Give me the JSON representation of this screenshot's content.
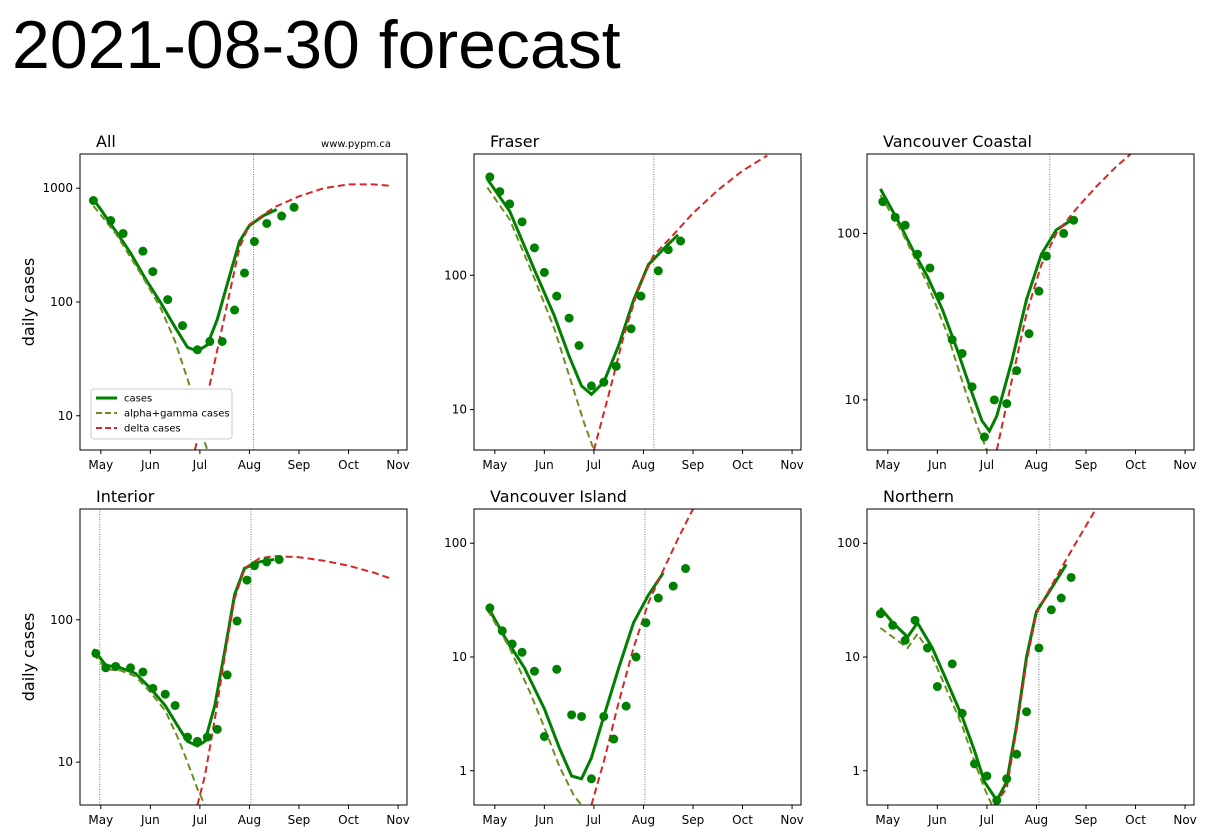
{
  "title": "2021-08-30 forecast",
  "chart_data": [
    {
      "type": "line",
      "title": "All",
      "annotation": "www.pypm.ca",
      "ylabel": "daily cases",
      "legend": "lower left",
      "log_y": true,
      "xlim": [
        4.58,
        11.18
      ],
      "xticks": [
        {
          "value": 5,
          "label": "May"
        },
        {
          "value": 6,
          "label": "Jun"
        },
        {
          "value": 7,
          "label": "Jul"
        },
        {
          "value": 8,
          "label": "Aug"
        },
        {
          "value": 9,
          "label": "Sep"
        },
        {
          "value": 10,
          "label": "Oct"
        },
        {
          "value": 11,
          "label": "Nov"
        }
      ],
      "ylim": [
        5,
        2000
      ],
      "yticks": [
        10,
        100,
        1000
      ],
      "vlines": [
        8.08
      ],
      "series": [
        {
          "name": "cases",
          "color": "#008000",
          "linestyle": "solid",
          "x": [
            4.85,
            5.0,
            5.3,
            5.6,
            5.9,
            6.2,
            6.5,
            6.75,
            6.95,
            7.15,
            7.35,
            7.6,
            7.8,
            8.0,
            8.3,
            8.55
          ],
          "values": [
            800,
            650,
            420,
            270,
            160,
            100,
            60,
            40,
            37,
            42,
            70,
            170,
            340,
            470,
            580,
            650
          ]
        },
        {
          "name": "alpha+gamma cases",
          "color": "#6b8e23",
          "linestyle": "dashed",
          "x": [
            4.85,
            5.3,
            5.8,
            6.2,
            6.5,
            6.8,
            7.0,
            7.15
          ],
          "values": [
            700,
            400,
            180,
            90,
            45,
            18,
            8,
            5
          ]
        },
        {
          "name": "delta cases",
          "color": "#d62728",
          "linestyle": "dashed",
          "x": [
            6.9,
            7.1,
            7.3,
            7.6,
            7.8,
            8.0,
            8.5,
            9.0,
            9.5,
            10.0,
            10.5,
            10.85
          ],
          "values": [
            5,
            12,
            30,
            120,
            300,
            480,
            680,
            850,
            1000,
            1080,
            1080,
            1050
          ]
        }
      ],
      "points": {
        "color": "#008000",
        "x": [
          4.85,
          5.2,
          5.45,
          5.85,
          6.05,
          6.35,
          6.65,
          6.95,
          7.2,
          7.45,
          7.7,
          7.9,
          8.1,
          8.35,
          8.65,
          8.9
        ],
        "values": [
          780,
          520,
          400,
          280,
          185,
          105,
          62,
          38,
          45,
          45,
          85,
          180,
          340,
          490,
          570,
          680
        ]
      }
    },
    {
      "type": "line",
      "title": "Fraser",
      "log_y": true,
      "xlim": [
        4.58,
        11.18
      ],
      "xticks": [
        {
          "value": 5,
          "label": "May"
        },
        {
          "value": 6,
          "label": "Jun"
        },
        {
          "value": 7,
          "label": "Jul"
        },
        {
          "value": 8,
          "label": "Aug"
        },
        {
          "value": 9,
          "label": "Sep"
        },
        {
          "value": 10,
          "label": "Oct"
        },
        {
          "value": 11,
          "label": "Nov"
        }
      ],
      "ylim": [
        5,
        800
      ],
      "yticks": [
        10,
        100
      ],
      "vlines": [
        8.21
      ],
      "series": [
        {
          "name": "cases",
          "color": "#008000",
          "linestyle": "solid",
          "x": [
            4.85,
            5.3,
            5.8,
            6.2,
            6.5,
            6.75,
            6.95,
            7.2,
            7.5,
            7.8,
            8.1,
            8.5,
            8.7
          ],
          "values": [
            520,
            300,
            110,
            50,
            25,
            15,
            13,
            16,
            30,
            65,
            120,
            170,
            200
          ]
        },
        {
          "name": "alpha+gamma cases",
          "color": "#6b8e23",
          "linestyle": "dashed",
          "x": [
            4.85,
            5.3,
            5.8,
            6.2,
            6.5,
            6.8,
            7.0
          ],
          "values": [
            450,
            260,
            95,
            40,
            18,
            8,
            5
          ]
        },
        {
          "name": "delta cases",
          "color": "#d62728",
          "linestyle": "dashed",
          "x": [
            7.0,
            7.3,
            7.6,
            7.9,
            8.2,
            8.6,
            9.0,
            9.5,
            10.0,
            10.5
          ],
          "values": [
            5,
            13,
            35,
            80,
            140,
            200,
            290,
            430,
            600,
            780
          ]
        }
      ],
      "points": {
        "color": "#008000",
        "x": [
          4.9,
          5.1,
          5.3,
          5.55,
          5.8,
          6.0,
          6.25,
          6.5,
          6.7,
          6.95,
          7.2,
          7.45,
          7.75,
          7.95,
          8.3,
          8.5,
          8.75
        ],
        "values": [
          540,
          420,
          340,
          250,
          160,
          105,
          70,
          48,
          30,
          15,
          16,
          21,
          40,
          70,
          108,
          155,
          180
        ]
      }
    },
    {
      "type": "line",
      "title": "Vancouver Coastal",
      "log_y": true,
      "xlim": [
        4.58,
        11.18
      ],
      "xticks": [
        {
          "value": 5,
          "label": "May"
        },
        {
          "value": 6,
          "label": "Jun"
        },
        {
          "value": 7,
          "label": "Jul"
        },
        {
          "value": 8,
          "label": "Aug"
        },
        {
          "value": 9,
          "label": "Sep"
        },
        {
          "value": 10,
          "label": "Oct"
        },
        {
          "value": 11,
          "label": "Nov"
        }
      ],
      "ylim": [
        5,
        300
      ],
      "yticks": [
        10,
        100
      ],
      "vlines": [
        8.27
      ],
      "series": [
        {
          "name": "cases",
          "color": "#008000",
          "linestyle": "solid",
          "x": [
            4.85,
            5.2,
            5.5,
            5.8,
            6.1,
            6.4,
            6.7,
            6.9,
            7.05,
            7.2,
            7.5,
            7.8,
            8.1,
            8.4,
            8.7
          ],
          "values": [
            185,
            120,
            80,
            55,
            35,
            20,
            11,
            7.5,
            6.5,
            8,
            17,
            40,
            75,
            105,
            120
          ]
        },
        {
          "name": "alpha+gamma cases",
          "color": "#6b8e23",
          "linestyle": "dashed",
          "x": [
            4.85,
            5.3,
            5.8,
            6.2,
            6.5,
            6.8,
            7.0
          ],
          "values": [
            170,
            100,
            50,
            25,
            13,
            7,
            5
          ]
        },
        {
          "name": "delta cases",
          "color": "#d62728",
          "linestyle": "dashed",
          "x": [
            7.2,
            7.5,
            7.8,
            8.1,
            8.4,
            8.8,
            9.2,
            9.6,
            9.9
          ],
          "values": [
            5,
            13,
            33,
            65,
            100,
            140,
            190,
            250,
            300
          ]
        }
      ],
      "points": {
        "color": "#008000",
        "x": [
          4.9,
          5.15,
          5.35,
          5.6,
          5.85,
          6.05,
          6.3,
          6.5,
          6.7,
          6.95,
          7.15,
          7.4,
          7.6,
          7.85,
          8.05,
          8.2,
          8.55,
          8.75
        ],
        "values": [
          155,
          125,
          112,
          75,
          62,
          42,
          23,
          19,
          12,
          6,
          10,
          9.5,
          15,
          25,
          45,
          73,
          100,
          120
        ]
      }
    },
    {
      "type": "line",
      "title": "Interior",
      "ylabel": "daily cases",
      "log_y": true,
      "xlim": [
        4.58,
        11.18
      ],
      "xticks": [
        {
          "value": 5,
          "label": "May"
        },
        {
          "value": 6,
          "label": "Jun"
        },
        {
          "value": 7,
          "label": "Jul"
        },
        {
          "value": 8,
          "label": "Aug"
        },
        {
          "value": 9,
          "label": "Sep"
        },
        {
          "value": 10,
          "label": "Oct"
        },
        {
          "value": 11,
          "label": "Nov"
        }
      ],
      "ylim": [
        5,
        600
      ],
      "yticks": [
        10,
        100
      ],
      "vlines": [
        4.98,
        8.03
      ],
      "series": [
        {
          "name": "cases",
          "color": "#008000",
          "linestyle": "solid",
          "x": [
            4.85,
            5.1,
            5.4,
            5.7,
            6.0,
            6.3,
            6.55,
            6.75,
            6.95,
            7.1,
            7.3,
            7.5,
            7.7,
            7.9,
            8.2,
            8.5
          ],
          "values": [
            62,
            48,
            46,
            42,
            33,
            25,
            18,
            14,
            13,
            14,
            25,
            60,
            150,
            230,
            255,
            265
          ]
        },
        {
          "name": "alpha+gamma cases",
          "color": "#6b8e23",
          "linestyle": "dashed",
          "x": [
            4.85,
            5.1,
            5.4,
            5.7,
            6.0,
            6.3,
            6.55,
            6.75,
            6.95,
            7.1
          ],
          "values": [
            58,
            45,
            44,
            40,
            31,
            23,
            15,
            10,
            6.5,
            5
          ]
        },
        {
          "name": "delta cases",
          "color": "#d62728",
          "linestyle": "dashed",
          "x": [
            6.95,
            7.1,
            7.3,
            7.5,
            7.7,
            7.9,
            8.2,
            8.5,
            9.0,
            9.5,
            10.0,
            10.5,
            10.85
          ],
          "values": [
            5,
            8,
            20,
            55,
            140,
            230,
            270,
            280,
            275,
            260,
            240,
            215,
            195
          ]
        }
      ],
      "points": {
        "color": "#008000",
        "x": [
          4.9,
          5.1,
          5.3,
          5.6,
          5.85,
          6.05,
          6.3,
          6.5,
          6.75,
          6.95,
          7.15,
          7.35,
          7.55,
          7.75,
          7.95,
          8.1,
          8.35,
          8.6
        ],
        "values": [
          58,
          46,
          47,
          46,
          43,
          33,
          30,
          25,
          15,
          14,
          15,
          17,
          41,
          98,
          190,
          240,
          255,
          265
        ]
      }
    },
    {
      "type": "line",
      "title": "Vancouver Island",
      "log_y": true,
      "xlim": [
        4.58,
        11.18
      ],
      "xticks": [
        {
          "value": 5,
          "label": "May"
        },
        {
          "value": 6,
          "label": "Jun"
        },
        {
          "value": 7,
          "label": "Jul"
        },
        {
          "value": 8,
          "label": "Aug"
        },
        {
          "value": 9,
          "label": "Sep"
        },
        {
          "value": 10,
          "label": "Oct"
        },
        {
          "value": 11,
          "label": "Nov"
        }
      ],
      "ylim": [
        0.5,
        200
      ],
      "yticks": [
        1,
        10,
        100
      ],
      "vlines": [
        8.03
      ],
      "series": [
        {
          "name": "cases",
          "color": "#008000",
          "linestyle": "solid",
          "x": [
            4.85,
            5.2,
            5.6,
            6.0,
            6.3,
            6.55,
            6.75,
            6.95,
            7.2,
            7.5,
            7.8,
            8.1,
            8.4
          ],
          "values": [
            28,
            15,
            8,
            3.5,
            1.6,
            0.9,
            0.85,
            1.3,
            3,
            8,
            20,
            35,
            55
          ]
        },
        {
          "name": "alpha+gamma cases",
          "color": "#6b8e23",
          "linestyle": "dashed",
          "x": [
            4.85,
            5.3,
            5.7,
            6.0,
            6.3,
            6.6,
            6.75
          ],
          "values": [
            26,
            12,
            5,
            2.4,
            1.1,
            0.6,
            0.5
          ]
        },
        {
          "name": "delta cases",
          "color": "#d62728",
          "linestyle": "dashed",
          "x": [
            6.95,
            7.2,
            7.5,
            7.8,
            8.1,
            8.4,
            8.7,
            9.0
          ],
          "values": [
            0.5,
            1.2,
            4,
            12,
            30,
            58,
            110,
            200
          ]
        }
      ],
      "points": {
        "color": "#008000",
        "x": [
          4.9,
          5.15,
          5.35,
          5.55,
          5.8,
          6.0,
          6.25,
          6.55,
          6.75,
          6.95,
          7.2,
          7.4,
          7.65,
          7.85,
          8.05,
          8.3,
          8.6,
          8.85
        ],
        "values": [
          27,
          17,
          13,
          11,
          7.5,
          2,
          7.8,
          3.1,
          3,
          0.85,
          3,
          1.9,
          3.7,
          10,
          20,
          33,
          42,
          60
        ]
      }
    },
    {
      "type": "line",
      "title": "Northern",
      "log_y": true,
      "xlim": [
        4.58,
        11.18
      ],
      "xticks": [
        {
          "value": 5,
          "label": "May"
        },
        {
          "value": 6,
          "label": "Jun"
        },
        {
          "value": 7,
          "label": "Jul"
        },
        {
          "value": 8,
          "label": "Aug"
        },
        {
          "value": 9,
          "label": "Sep"
        },
        {
          "value": 10,
          "label": "Oct"
        },
        {
          "value": 11,
          "label": "Nov"
        }
      ],
      "ylim": [
        0.5,
        200
      ],
      "yticks": [
        1,
        10,
        100
      ],
      "vlines": [
        8.05
      ],
      "series": [
        {
          "name": "cases",
          "color": "#008000",
          "linestyle": "solid",
          "x": [
            4.85,
            5.1,
            5.4,
            5.6,
            5.9,
            6.2,
            6.5,
            6.75,
            6.95,
            7.2,
            7.4,
            7.6,
            7.8,
            8.0,
            8.3,
            8.6
          ],
          "values": [
            27,
            20,
            15,
            20,
            12,
            6,
            3,
            1.5,
            0.8,
            0.55,
            0.8,
            2.5,
            10,
            25,
            40,
            65
          ]
        },
        {
          "name": "alpha+gamma cases",
          "color": "#6b8e23",
          "linestyle": "dashed",
          "x": [
            4.85,
            5.1,
            5.4,
            5.6,
            5.9,
            6.2,
            6.5,
            6.75,
            6.95,
            7.1
          ],
          "values": [
            18,
            15,
            12,
            16,
            10,
            5,
            2.5,
            1.2,
            0.7,
            0.5
          ]
        },
        {
          "name": "delta cases",
          "color": "#d62728",
          "linestyle": "dashed",
          "x": [
            7.15,
            7.4,
            7.6,
            7.8,
            8.0,
            8.3,
            8.6,
            8.9,
            9.2
          ],
          "values": [
            0.5,
            0.7,
            2.3,
            9,
            24,
            42,
            72,
            120,
            200
          ]
        }
      ],
      "points": {
        "color": "#008000",
        "x": [
          4.85,
          5.1,
          5.35,
          5.55,
          5.8,
          6.0,
          6.3,
          6.5,
          6.75,
          7.0,
          7.2,
          7.4,
          7.6,
          7.8,
          8.05,
          8.3,
          8.5,
          8.7
        ],
        "values": [
          24,
          19,
          14,
          21,
          12,
          5.5,
          8.7,
          3.2,
          1.15,
          0.9,
          0.55,
          0.85,
          1.4,
          3.3,
          12,
          26,
          33,
          50
        ]
      }
    }
  ]
}
